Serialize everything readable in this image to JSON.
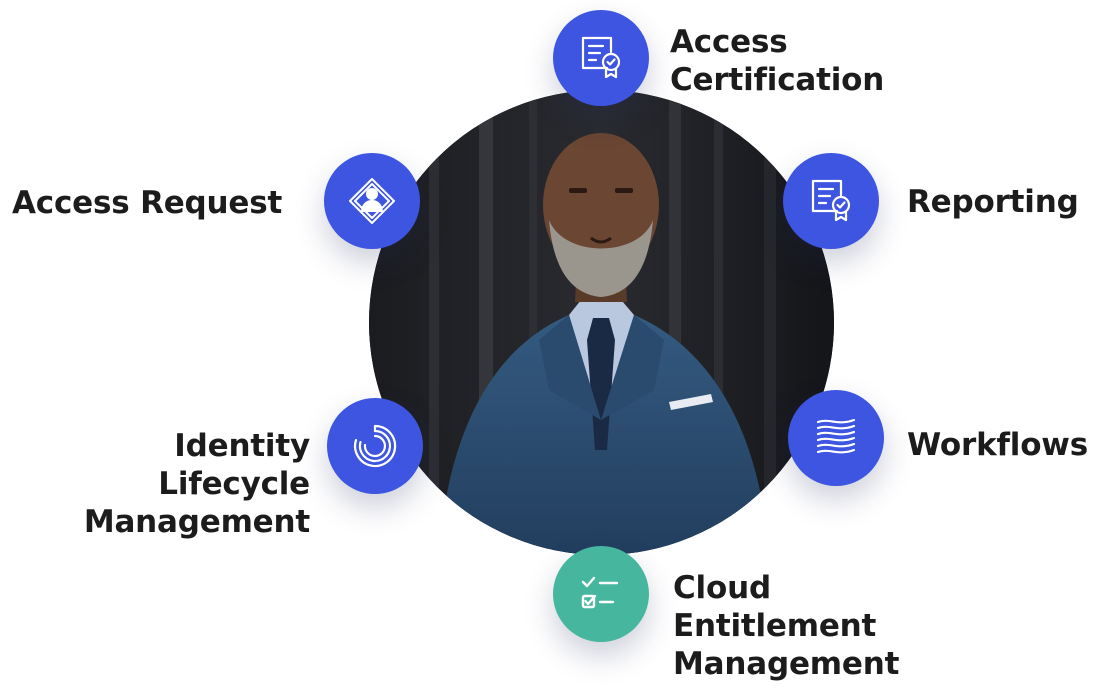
{
  "colors": {
    "node_blue": "#3d55e0",
    "node_teal": "#46b79e",
    "text": "#1c1c1c"
  },
  "center_photo": {
    "subject": "portrait-of-man-in-suit"
  },
  "nodes": [
    {
      "id": "access-certification",
      "icon": "certificate-icon",
      "color": "#3d55e0",
      "label_lines": [
        "Access",
        "Certification"
      ]
    },
    {
      "id": "reporting",
      "icon": "certificate-icon",
      "color": "#3d55e0",
      "label_lines": [
        "Reporting"
      ]
    },
    {
      "id": "workflows",
      "icon": "wave-lines-icon",
      "color": "#3d55e0",
      "label_lines": [
        "Workflows"
      ]
    },
    {
      "id": "cloud-entitlement-management",
      "icon": "checklist-icon",
      "color": "#46b79e",
      "label_lines": [
        "Cloud",
        "Entitlement",
        "Management"
      ]
    },
    {
      "id": "identity-lifecycle-management",
      "icon": "lifecycle-rings-icon",
      "color": "#3d55e0",
      "label_lines": [
        "Identity",
        "Lifecycle",
        "Management"
      ]
    },
    {
      "id": "access-request",
      "icon": "person-diamond-icon",
      "color": "#3d55e0",
      "label_lines": [
        "Access Request"
      ]
    }
  ]
}
